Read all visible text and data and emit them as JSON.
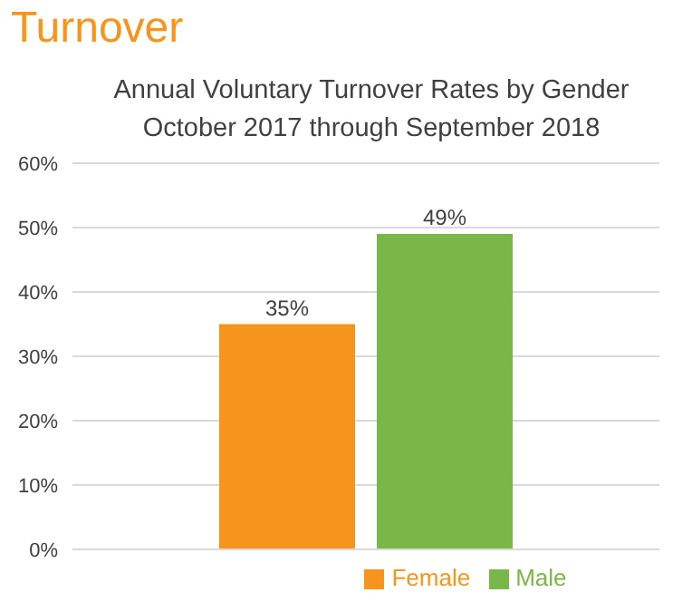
{
  "chart_data": {
    "type": "bar",
    "title": "Turnover",
    "subtitle": "Annual Voluntary Turnover Rates by Gender\nOctober 2017 through September 2018",
    "categories": [
      null
    ],
    "series": [
      {
        "name": "Female",
        "color": "#f7941d",
        "values": [
          35
        ],
        "value_labels": [
          "35%"
        ]
      },
      {
        "name": "Male",
        "color": "#7ab648",
        "values": [
          49
        ],
        "value_labels": [
          "49%"
        ]
      }
    ],
    "ylim": [
      0,
      60
    ],
    "yticks": [
      {
        "value": 0,
        "label": "0%"
      },
      {
        "value": 10,
        "label": "10%"
      },
      {
        "value": 20,
        "label": "20%"
      },
      {
        "value": 30,
        "label": "30%"
      },
      {
        "value": 40,
        "label": "40%"
      },
      {
        "value": 50,
        "label": "50%"
      },
      {
        "value": 60,
        "label": "60%"
      }
    ],
    "grid": "y",
    "legend": "bottom"
  }
}
